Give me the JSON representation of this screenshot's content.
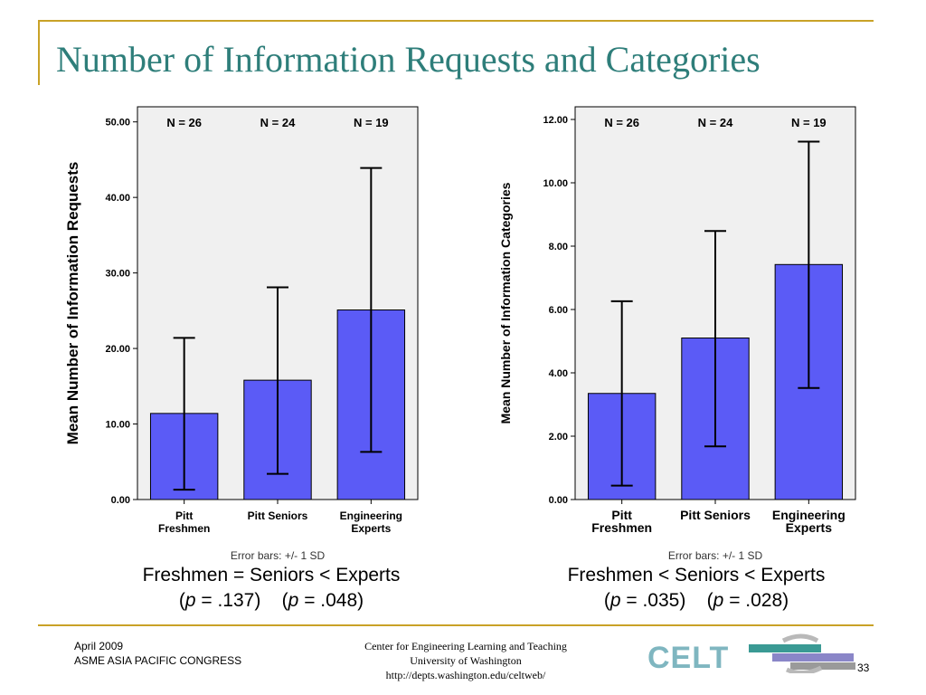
{
  "slide": {
    "title": "Number of Information Requests and Categories",
    "footer_date": "April 2009",
    "footer_event": "ASME ASIA PACIFIC CONGRESS",
    "footer_center_line1": "Center for Engineering Learning and Teaching",
    "footer_center_line2": "University of Washington",
    "footer_center_line3": "http://depts.washington.edu/celtweb/",
    "logo_text": "CELT",
    "page_number": "33",
    "accent_gold": "#c9a227",
    "title_color": "#2e7e7a"
  },
  "captions": {
    "left": {
      "line1": "Freshmen = Seniors < Experts",
      "p1_pre": "(",
      "p1_var": "p",
      "p1_val": " = .137)",
      "p2_pre": "(",
      "p2_var": "p",
      "p2_val": " = .048)"
    },
    "right": {
      "line1": "Freshmen < Seniors < Experts",
      "p1_pre": "(",
      "p1_var": "p",
      "p1_val": " = .035)",
      "p2_pre": "(",
      "p2_var": "p",
      "p2_val": " = .028)"
    }
  },
  "chart_data": [
    {
      "type": "bar",
      "ylabel": "Mean Number of Information Requests",
      "categories": [
        [
          "Pitt",
          "Freshmen"
        ],
        [
          "Pitt Seniors"
        ],
        [
          "Engineering",
          "Experts"
        ]
      ],
      "n_labels": [
        "N = 26",
        "N = 24",
        "N = 19"
      ],
      "values": [
        11.4,
        15.8,
        25.1
      ],
      "error_low": [
        1.3,
        3.4,
        6.3
      ],
      "error_high": [
        21.4,
        28.1,
        43.9
      ],
      "ylim": [
        0,
        52
      ],
      "yticks": [
        "0.00",
        "10.00",
        "20.00",
        "30.00",
        "40.00",
        "50.00"
      ],
      "ytick_values": [
        0,
        10,
        20,
        30,
        40,
        50
      ],
      "error_note": "Error bars: +/- 1 SD",
      "bar_color": "#5b5bf6",
      "plot_bg": "#f0f0f0"
    },
    {
      "type": "bar",
      "ylabel": "Mean Number of Information Categories",
      "categories": [
        [
          "Pitt",
          "Freshmen"
        ],
        [
          "Pitt Seniors"
        ],
        [
          "Engineering",
          "Experts"
        ]
      ],
      "n_labels": [
        "N = 26",
        "N = 24",
        "N = 19"
      ],
      "values": [
        3.35,
        5.1,
        7.42
      ],
      "error_low": [
        0.44,
        1.68,
        3.52
      ],
      "error_high": [
        6.26,
        8.48,
        11.3
      ],
      "ylim": [
        0,
        12.4
      ],
      "yticks": [
        "0.00",
        "2.00",
        "4.00",
        "6.00",
        "8.00",
        "10.00",
        "12.00"
      ],
      "ytick_values": [
        0,
        2,
        4,
        6,
        8,
        10,
        12
      ],
      "error_note": "Error bars: +/- 1 SD",
      "bar_color": "#5b5bf6",
      "plot_bg": "#f0f0f0"
    }
  ]
}
